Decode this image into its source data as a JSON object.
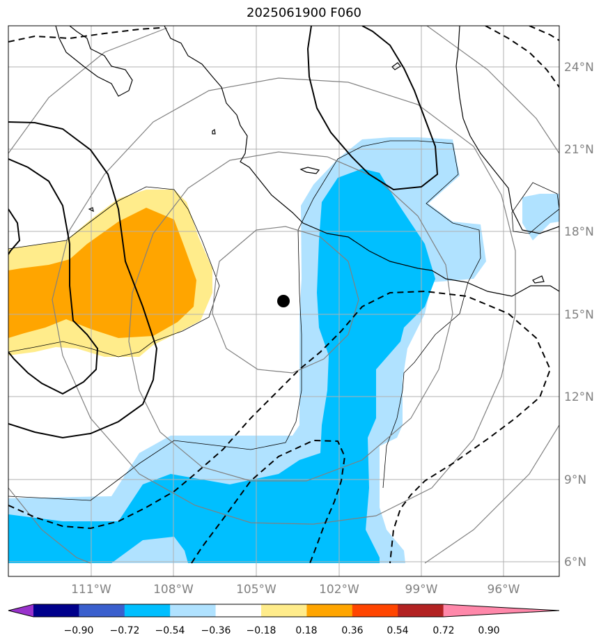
{
  "title": "2025061900 F060",
  "map": {
    "extent": {
      "lon_min": -114,
      "lon_max": -94,
      "lat_min": 5.5,
      "lat_max": 25.6
    },
    "center_marker": {
      "lon": -103.9,
      "lat": 15.5
    },
    "gridlines": true,
    "lon_labels": [
      "111°W",
      "108°W",
      "105°W",
      "102°W",
      "99°W",
      "96°W"
    ],
    "lat_labels": [
      "24°N",
      "21°N",
      "18°N",
      "15°N",
      "12°N",
      "9°N",
      "6°N"
    ],
    "label_color": "#808080"
  },
  "colorbar": {
    "ticks": [
      "−0.90",
      "−0.72",
      "−0.54",
      "−0.36",
      "−0.18",
      "0.18",
      "0.36",
      "0.54",
      "0.72",
      "0.90"
    ],
    "colors": [
      "#9932cc",
      "#00008b",
      "#3a5fcd",
      "#00bfff",
      "#b0e2ff",
      "#ffffff",
      "#ffec8b",
      "#ffa500",
      "#ff4500",
      "#b22222",
      "#ff88aa"
    ],
    "extend": "both"
  }
}
